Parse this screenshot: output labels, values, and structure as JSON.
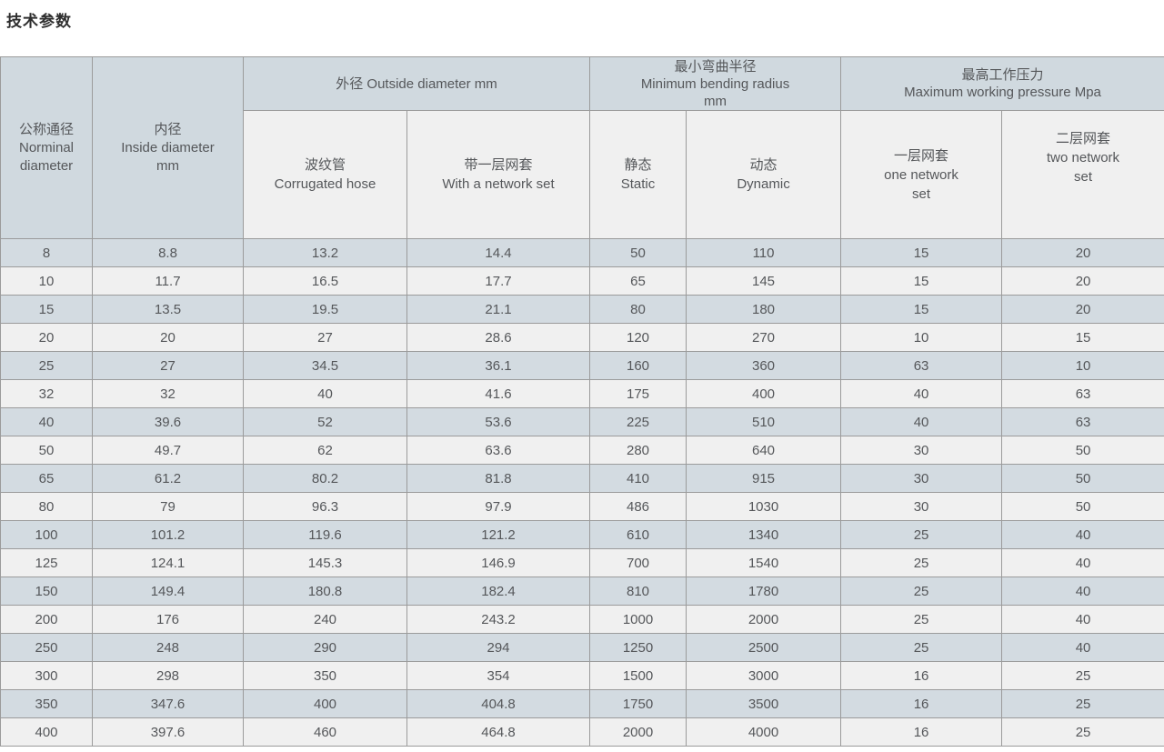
{
  "page": {
    "title": "技术参数"
  },
  "colors": {
    "header_blue": "#d0d9df",
    "row_blue": "#d3dbe1",
    "row_light": "#f0f0f0",
    "border": "#9b9b9b",
    "text": "#55575a"
  },
  "table": {
    "groups": {
      "outside": [
        "外径 Outside diameter mm"
      ],
      "bending": [
        "最小弯曲半径",
        "Minimum bending radius",
        "mm"
      ],
      "pressure": [
        "最高工作压力",
        "Maximum working pressure Mpa"
      ]
    },
    "headers": {
      "nominal": [
        "公称通径",
        "Norminal",
        "diameter"
      ],
      "inside": [
        "内径",
        "Inside diameter",
        "mm"
      ],
      "corrugated": [
        "波纹管",
        "Corrugated hose"
      ],
      "with_net": [
        "带一层网套",
        "With a network set"
      ],
      "static": [
        "静态",
        "Static"
      ],
      "dynamic": [
        "动态",
        "Dynamic"
      ],
      "one_net": [
        "一层网套",
        "one network",
        "set"
      ],
      "two_net": [
        "二层网套",
        "two network",
        "set"
      ]
    },
    "column_keys": [
      "nominal-diameter",
      "inside-diameter",
      "corrugated-hose",
      "with-network-set",
      "static-radius",
      "dynamic-radius",
      "one-network-set",
      "two-network-set"
    ],
    "rows": [
      [
        "8",
        "8.8",
        "13.2",
        "14.4",
        "50",
        "110",
        "15",
        "20"
      ],
      [
        "10",
        "11.7",
        "16.5",
        "17.7",
        "65",
        "145",
        "15",
        "20"
      ],
      [
        "15",
        "13.5",
        "19.5",
        "21.1",
        "80",
        "180",
        "15",
        "20"
      ],
      [
        "20",
        "20",
        "27",
        "28.6",
        "120",
        "270",
        "10",
        "15"
      ],
      [
        "25",
        "27",
        "34.5",
        "36.1",
        "160",
        "360",
        "63",
        "10"
      ],
      [
        "32",
        "32",
        "40",
        "41.6",
        "175",
        "400",
        "40",
        "63"
      ],
      [
        "40",
        "39.6",
        "52",
        "53.6",
        "225",
        "510",
        "40",
        "63"
      ],
      [
        "50",
        "49.7",
        "62",
        "63.6",
        "280",
        "640",
        "30",
        "50"
      ],
      [
        "65",
        "61.2",
        "80.2",
        "81.8",
        "410",
        "915",
        "30",
        "50"
      ],
      [
        "80",
        "79",
        "96.3",
        "97.9",
        "486",
        "1030",
        "30",
        "50"
      ],
      [
        "100",
        "101.2",
        "119.6",
        "121.2",
        "610",
        "1340",
        "25",
        "40"
      ],
      [
        "125",
        "124.1",
        "145.3",
        "146.9",
        "700",
        "1540",
        "25",
        "40"
      ],
      [
        "150",
        "149.4",
        "180.8",
        "182.4",
        "810",
        "1780",
        "25",
        "40"
      ],
      [
        "200",
        "176",
        "240",
        "243.2",
        "1000",
        "2000",
        "25",
        "40"
      ],
      [
        "250",
        "248",
        "290",
        "294",
        "1250",
        "2500",
        "25",
        "40"
      ],
      [
        "300",
        "298",
        "350",
        "354",
        "1500",
        "3000",
        "16",
        "25"
      ],
      [
        "350",
        "347.6",
        "400",
        "404.8",
        "1750",
        "3500",
        "16",
        "25"
      ],
      [
        "400",
        "397.6",
        "460",
        "464.8",
        "2000",
        "4000",
        "16",
        "25"
      ]
    ]
  }
}
